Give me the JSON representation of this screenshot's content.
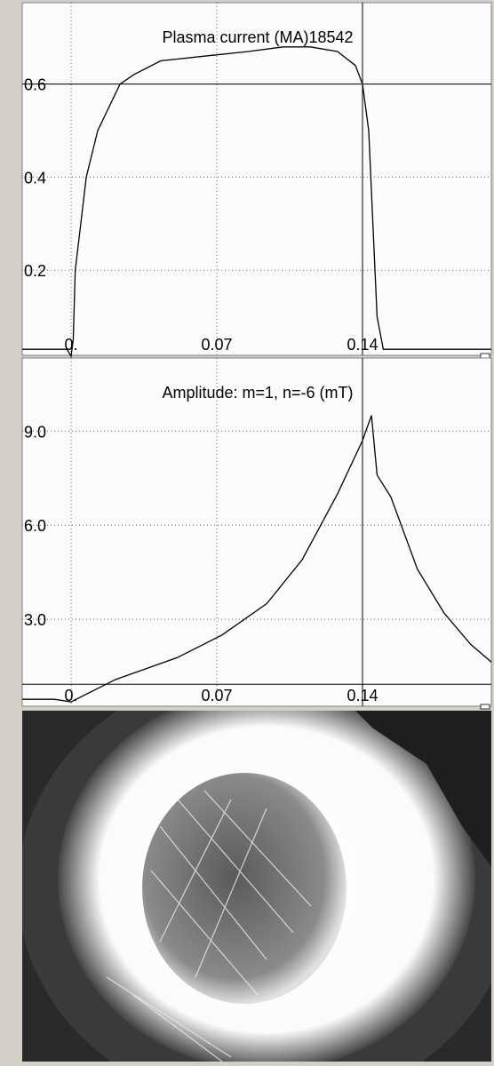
{
  "chart_data": [
    {
      "type": "line",
      "title": "Plasma current  (MA)18542",
      "x": [
        -0.0235,
        -0.002,
        0,
        0.001,
        0.002,
        0.0073,
        0.0128,
        0.0235,
        0.03,
        0.043,
        0.064,
        0.085,
        0.102,
        0.115,
        0.128,
        0.1366,
        0.14,
        0.143,
        0.145,
        0.147,
        0.15,
        0.175,
        0.2019
      ],
      "values": [
        0.03,
        0.03,
        0.015,
        0.05,
        0.2,
        0.4,
        0.5,
        0.6,
        0.62,
        0.65,
        0.66,
        0.67,
        0.68,
        0.68,
        0.67,
        0.64,
        0.6,
        0.5,
        0.3,
        0.1,
        0.03,
        0.03,
        0.03
      ],
      "color": "#000000",
      "xlim": [
        -0.0235,
        0.2019
      ],
      "ylim": [
        0.017,
        0.775
      ],
      "xticks": [
        {
          "value": 0,
          "label": "0."
        },
        0.07,
        0.14
      ],
      "yticks": [
        0.6,
        0.4,
        0.2
      ],
      "cursor": {
        "x": 0.14,
        "y": 0.6
      },
      "grid": true
    },
    {
      "type": "line",
      "title": "Amplitude: m=1, n=-6 (mT)",
      "x": [
        -0.0235,
        -0.008,
        0,
        0.0213,
        0.051,
        0.0725,
        0.094,
        0.111,
        0.128,
        0.14,
        0.1443,
        0.147,
        0.1536,
        0.1664,
        0.1792,
        0.192,
        0.2019
      ],
      "values": [
        0.45,
        0.45,
        0.37,
        1.08,
        1.78,
        2.5,
        3.5,
        4.9,
        7.0,
        8.7,
        9.5,
        7.6,
        6.9,
        4.6,
        3.2,
        2.2,
        1.64
      ],
      "color": "#000000",
      "xlim": [
        -0.0235,
        0.2019
      ],
      "ylim": [
        0.23,
        11.33
      ],
      "xticks": [
        {
          "value": 0,
          "label": "0."
        },
        0.07,
        0.14
      ],
      "yticks": [
        {
          "value": 9,
          "label": "9.0"
        },
        {
          "value": 6,
          "label": "6.0"
        },
        {
          "value": 3,
          "label": "3.0"
        }
      ],
      "cursor": {
        "x": 0.14,
        "y": 0.93
      },
      "grid": true
    }
  ]
}
